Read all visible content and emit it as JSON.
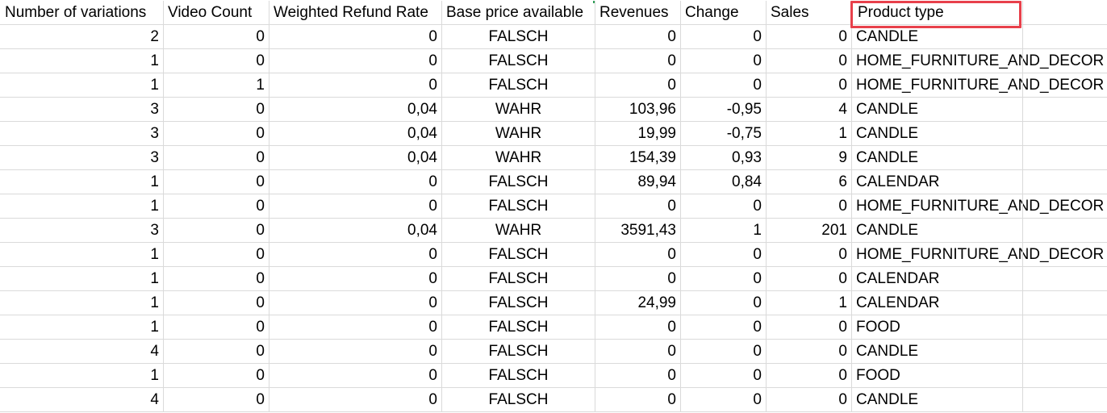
{
  "headers": [
    "Number of variations",
    "Video Count",
    "Weighted Refund Rate",
    "Base price available",
    "Revenues",
    "Change",
    "Sales",
    "Product type"
  ],
  "rows": [
    [
      "2",
      "0",
      "0",
      "FALSCH",
      "0",
      "0",
      "0",
      "CANDLE"
    ],
    [
      "1",
      "0",
      "0",
      "FALSCH",
      "0",
      "0",
      "0",
      "HOME_FURNITURE_AND_DECOR"
    ],
    [
      "1",
      "1",
      "0",
      "FALSCH",
      "0",
      "0",
      "0",
      "HOME_FURNITURE_AND_DECOR"
    ],
    [
      "3",
      "0",
      "0,04",
      "WAHR",
      "103,96",
      "-0,95",
      "4",
      "CANDLE"
    ],
    [
      "3",
      "0",
      "0,04",
      "WAHR",
      "19,99",
      "-0,75",
      "1",
      "CANDLE"
    ],
    [
      "3",
      "0",
      "0,04",
      "WAHR",
      "154,39",
      "0,93",
      "9",
      "CANDLE"
    ],
    [
      "1",
      "0",
      "0",
      "FALSCH",
      "89,94",
      "0,84",
      "6",
      "CALENDAR"
    ],
    [
      "1",
      "0",
      "0",
      "FALSCH",
      "0",
      "0",
      "0",
      "HOME_FURNITURE_AND_DECOR"
    ],
    [
      "3",
      "0",
      "0,04",
      "WAHR",
      "3591,43",
      "1",
      "201",
      "CANDLE"
    ],
    [
      "1",
      "0",
      "0",
      "FALSCH",
      "0",
      "0",
      "0",
      "HOME_FURNITURE_AND_DECOR"
    ],
    [
      "1",
      "0",
      "0",
      "FALSCH",
      "0",
      "0",
      "0",
      "CALENDAR"
    ],
    [
      "1",
      "0",
      "0",
      "FALSCH",
      "24,99",
      "0",
      "1",
      "CALENDAR"
    ],
    [
      "1",
      "0",
      "0",
      "FALSCH",
      "0",
      "0",
      "0",
      "FOOD"
    ],
    [
      "4",
      "0",
      "0",
      "FALSCH",
      "0",
      "0",
      "0",
      "CANDLE"
    ],
    [
      "1",
      "0",
      "0",
      "FALSCH",
      "0",
      "0",
      "0",
      "FOOD"
    ],
    [
      "4",
      "0",
      "0",
      "FALSCH",
      "0",
      "0",
      "0",
      "CANDLE"
    ]
  ],
  "colors": {
    "selection_border": "#e8404b",
    "gridline": "#dadada"
  }
}
